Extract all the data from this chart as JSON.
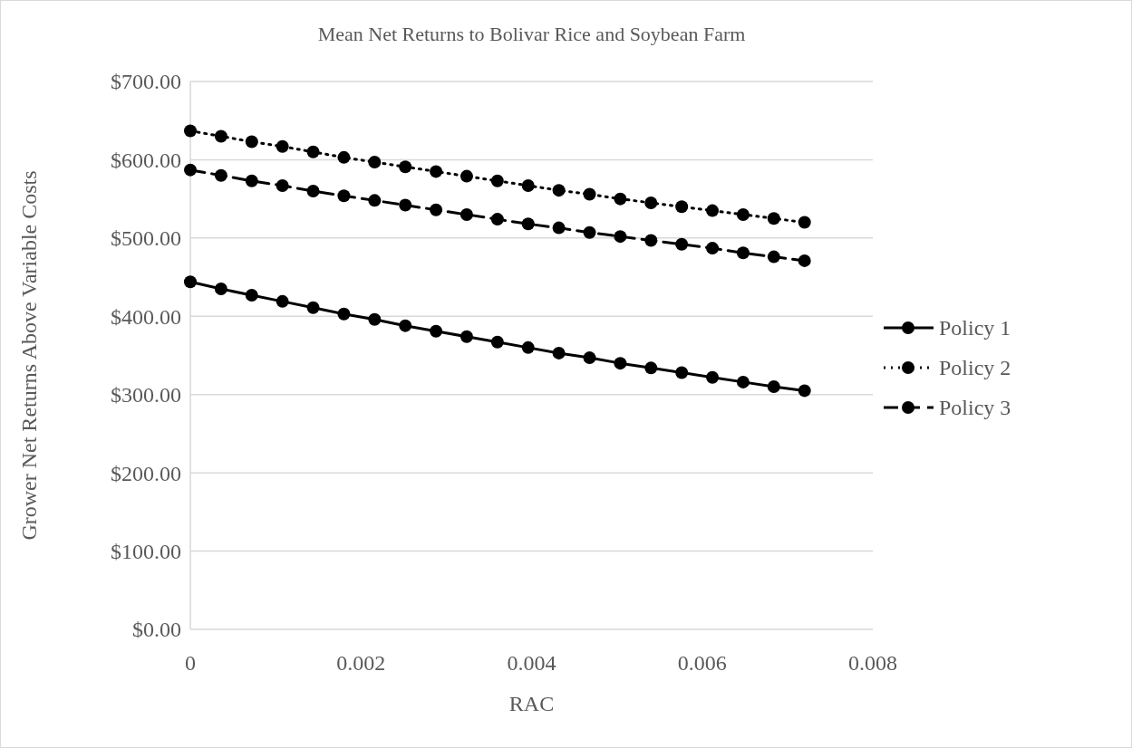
{
  "chart_data": {
    "type": "line",
    "title": "Mean Net Returns to Bolivar Rice and Soybean Farm",
    "xlabel": "RAC",
    "ylabel": "Grower Net Returns Above Variable Costs",
    "x": [
      0,
      0.00036,
      0.00072,
      0.00108,
      0.00144,
      0.0018,
      0.00216,
      0.00252,
      0.00288,
      0.00324,
      0.0036,
      0.00396,
      0.00432,
      0.00468,
      0.00504,
      0.0054,
      0.00576,
      0.00612,
      0.00648,
      0.00684,
      0.0072
    ],
    "series": [
      {
        "name": "Policy 1",
        "color": "#000000",
        "line_style": "solid",
        "values": [
          444,
          435,
          427,
          419,
          411,
          403,
          396,
          388,
          381,
          374,
          367,
          360,
          353,
          347,
          340,
          334,
          328,
          322,
          316,
          310,
          305
        ]
      },
      {
        "name": "Policy 2",
        "color": "#000000",
        "line_style": "dotted",
        "values": [
          637,
          630,
          623,
          617,
          610,
          603,
          597,
          591,
          585,
          579,
          573,
          567,
          561,
          556,
          550,
          545,
          540,
          535,
          530,
          525,
          520
        ]
      },
      {
        "name": "Policy 3",
        "color": "#000000",
        "line_style": "dashed",
        "values": [
          587,
          580,
          573,
          567,
          560,
          554,
          548,
          542,
          536,
          530,
          524,
          518,
          513,
          507,
          502,
          497,
          492,
          487,
          481,
          476,
          471
        ]
      }
    ],
    "xlim": [
      0,
      0.008
    ],
    "xticks": [
      0,
      0.002,
      0.004,
      0.006,
      0.008
    ],
    "ylim": [
      0,
      700
    ],
    "yticks": [
      {
        "value": 0,
        "label": "$0.00"
      },
      {
        "value": 100,
        "label": "$100.00"
      },
      {
        "value": 200,
        "label": "$200.00"
      },
      {
        "value": 300,
        "label": "$300.00"
      },
      {
        "value": 400,
        "label": "$400.00"
      },
      {
        "value": 500,
        "label": "$500.00"
      },
      {
        "value": 600,
        "label": "$600.00"
      },
      {
        "value": 700,
        "label": "$700.00"
      }
    ],
    "grid": "y",
    "legend": "right",
    "marker": "circle"
  }
}
